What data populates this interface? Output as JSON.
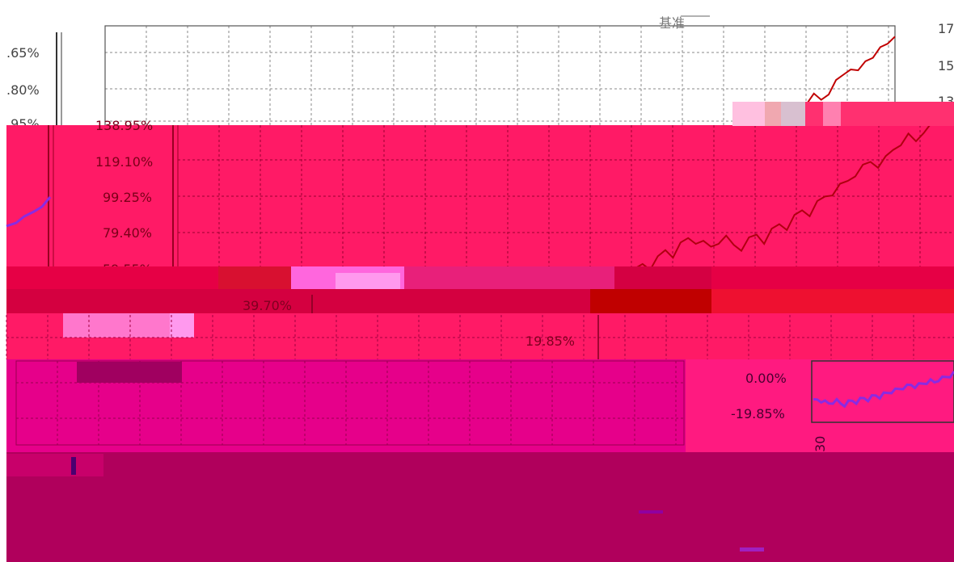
{
  "colors": {
    "background": "#ffffff",
    "grid": "#888888",
    "strategy_line": "#c00000",
    "benchmark_line": "#8a2be2",
    "glitch_pink": "#ff1a66",
    "glitch_crimson": "#e60045",
    "glitch_magenta": "#e6008a",
    "glitch_maroon": "#b0005c",
    "glitch_light": "#ff99ee",
    "axis_text_light": "#444444",
    "axis_text_dark": "#7a0018"
  },
  "legend_label": "基准",
  "bottom_label": "30",
  "chart_data": {
    "type": "line",
    "title": "",
    "xlabel": "",
    "ylabel": "",
    "grid": true,
    "left_axis_ticks": [
      ".65%",
      ".80%",
      ".95%"
    ],
    "right_axis_ticks": [
      "17",
      "15",
      "13"
    ],
    "percent_axis_ticks": [
      "138.95%",
      "119.10%",
      "99.25%",
      "79.40%",
      "59.55%",
      "39.70%",
      "19.85%",
      "0.00%",
      "-19.85%"
    ],
    "ylim": [
      -19.85,
      138.95
    ],
    "series": [
      {
        "name": "",
        "values": [
          0,
          2,
          1,
          4,
          6,
          5,
          8,
          10,
          9,
          13,
          15,
          14,
          18,
          21,
          19,
          24,
          27,
          25,
          29,
          33,
          31,
          36,
          40,
          38,
          43,
          47,
          45,
          50,
          55,
          52,
          58,
          62,
          60,
          59,
          57,
          60,
          62,
          58,
          56,
          61,
          64,
          60,
          66,
          70,
          68,
          74,
          78,
          76,
          82,
          86,
          88,
          92,
          95,
          99,
          103,
          106,
          104,
          108,
          113,
          117,
          121,
          118,
          124,
          127,
          130,
          133,
          138
        ]
      },
      {
        "name": "",
        "values": [
          0,
          1,
          0,
          2,
          3,
          2,
          4,
          5,
          4,
          6,
          7,
          6,
          8,
          9,
          8,
          10,
          11,
          10,
          12,
          13,
          12,
          14,
          15,
          14,
          16,
          17,
          16,
          18,
          19,
          18,
          19,
          20,
          19,
          18,
          17,
          18,
          19,
          17,
          16,
          18,
          19,
          18,
          20,
          21,
          20,
          22,
          23,
          22,
          24,
          25,
          26,
          27,
          28,
          29,
          30,
          31,
          30,
          31,
          32,
          33,
          34,
          33,
          35,
          36,
          37,
          38,
          40
        ]
      }
    ]
  }
}
